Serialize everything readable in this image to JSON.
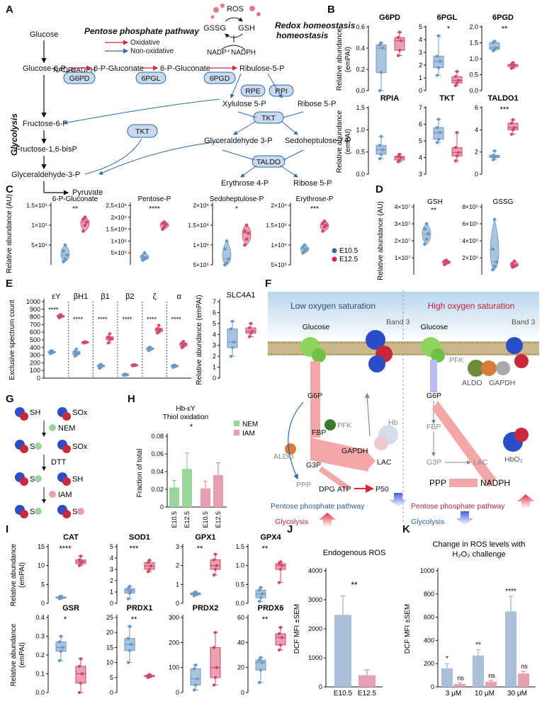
{
  "panel_labels": [
    "A",
    "B",
    "C",
    "D",
    "E",
    "F",
    "G",
    "H",
    "I",
    "J",
    "K"
  ],
  "colors": {
    "blue": "#6d98c2",
    "blue_fill": "#a9c4de",
    "red": "#d14a6a",
    "red_fill": "#e8a1b2",
    "green": "#9bd59b",
    "pink": "#e69fb0",
    "arrow_blue": "#2f6aa8",
    "arrow_red": "#d9263d",
    "node": "#c9daee"
  },
  "panelA": {
    "glycolysis_label": "Glycolysis",
    "ppp_title": "Pentose phosphate pathway",
    "legend_oxidative": "Oxidative",
    "legend_nonoxidative": "Non-oxidative",
    "redox_title": "Redox homeostasis",
    "ros": "ROS",
    "gssg": "GSSG",
    "gsh": "GSH",
    "nadp1": "NADP⁺",
    "nadph1": "NADPH",
    "nadp2": "NADP⁺",
    "nadph2": "NADPH",
    "metabolites": [
      "Glucose",
      "Glucose-6-P",
      "Fructose-6-P",
      "Fructose-1,6-bisP",
      "Glyceraldehyde-3-P",
      "Pyruvate",
      "6-P-Gluconate",
      "6-P-Gluconate",
      "Ribulose-5-P",
      "Xylulose 5-P",
      "Ribose 5-P",
      "Glyceraldehyde 3-P",
      "Sedoheptulose 7-P",
      "Erythrose 4-P",
      "Ribose 5-P"
    ],
    "enzymes": [
      "G6PD",
      "6PGL",
      "6PGD",
      "RPE",
      "RPI",
      "TKT",
      "TKT",
      "TALDO"
    ]
  },
  "panelB": {
    "ylabel": "Relative abundance (emPAI)",
    "plots": [
      {
        "title": "G6PD",
        "sig": "",
        "ylim": [
          0,
          0.6
        ],
        "ticks": [
          "0.0",
          "0.2",
          "0.4",
          "0.6"
        ],
        "e105": [
          0.0,
          0.17,
          0.4,
          0.43,
          0.45
        ],
        "e125": [
          0.33,
          0.38,
          0.47,
          0.5,
          0.55
        ]
      },
      {
        "title": "6PGL",
        "sig": "*",
        "ylim": [
          0,
          5
        ],
        "ticks": [
          "0",
          "1",
          "2",
          "3",
          "4",
          "5"
        ],
        "e105": [
          1.2,
          1.8,
          2.3,
          2.7,
          4.3
        ],
        "e125": [
          0.4,
          0.6,
          0.8,
          1.1,
          1.5
        ]
      },
      {
        "title": "6PGD",
        "sig": "**",
        "ylim": [
          0,
          2
        ],
        "ticks": [
          "0.0",
          "0.5",
          "1.0",
          "1.5",
          "2.0"
        ],
        "e105": [
          1.25,
          1.3,
          1.35,
          1.5,
          1.55
        ],
        "e125": [
          0.7,
          0.75,
          0.8,
          0.82,
          0.88
        ]
      },
      {
        "title": "RPIA",
        "sig": "",
        "ylim": [
          0,
          1.5
        ],
        "ticks": [
          "0.0",
          "0.5",
          "1.0",
          "1.5"
        ],
        "e105": [
          0.35,
          0.45,
          0.55,
          0.65,
          0.85
        ],
        "e125": [
          0.28,
          0.32,
          0.38,
          0.4,
          0.45
        ]
      },
      {
        "title": "TKT",
        "sig": "",
        "ylim": [
          3,
          7
        ],
        "ticks": [
          "3",
          "4",
          "5",
          "6",
          "7"
        ],
        "e105": [
          4.9,
          5.1,
          5.5,
          5.8,
          6.3
        ],
        "e125": [
          3.8,
          4.1,
          4.3,
          4.6,
          5.5
        ]
      },
      {
        "title": "TALDO1",
        "sig": "***",
        "ylim": [
          0,
          6
        ],
        "ticks": [
          "0",
          "2",
          "4",
          "6"
        ],
        "e105": [
          1.3,
          1.5,
          1.6,
          1.7,
          2.1
        ],
        "e125": [
          3.6,
          4.0,
          4.2,
          4.6,
          4.9
        ]
      }
    ]
  },
  "panelC": {
    "ylabel": "Relative abundance (AU)",
    "legend": [
      "E10.5",
      "E12.5"
    ],
    "plots": [
      {
        "title": "6-P-Gluconate",
        "sig": "**",
        "ticks": [
          "5×10⁴",
          "1×10⁵",
          "1.5×10⁵"
        ],
        "tickvals": [
          50000,
          100000,
          150000
        ],
        "ylim": [
          0,
          150000
        ],
        "e105": [
          8000,
          15000,
          25000,
          35000,
          50000
        ],
        "e125": [
          85000,
          100000,
          108000,
          115000,
          120000
        ]
      },
      {
        "title": "Pentose-P",
        "sig": "****",
        "ticks": [
          "5×10⁵",
          "1×10⁶",
          "1.5×10⁶",
          "2×10⁶",
          "2.5×10⁶"
        ],
        "tickvals": [
          500000,
          1000000,
          1500000,
          2000000,
          2500000
        ],
        "ylim": [
          0,
          2500000
        ],
        "e105": [
          200000,
          250000,
          300000,
          350000,
          500000
        ],
        "e125": [
          1500000,
          1600000,
          1700000,
          1750000,
          1800000
        ]
      },
      {
        "title": "Sedoheptulose-P",
        "sig": "*",
        "ticks": [
          "5×10⁵",
          "1×10⁶",
          "1.5×10⁶",
          "2×10⁶"
        ],
        "tickvals": [
          500000,
          1000000,
          1500000,
          2000000
        ],
        "ylim": [
          0,
          2000000
        ],
        "e105": [
          500000,
          550000,
          650000,
          900000,
          1100000
        ],
        "e125": [
          1000000,
          1150000,
          1300000,
          1350000,
          1500000
        ],
        "ymin": 500000
      },
      {
        "title": "Erythrose-P",
        "sig": "***",
        "ticks": [
          "5×10⁵",
          "1×10⁶",
          "1.5×10⁶",
          "2×10⁶"
        ],
        "tickvals": [
          500000,
          1000000,
          1500000,
          2000000
        ],
        "ylim": [
          0,
          2000000
        ],
        "e105": [
          800000,
          850000,
          900000,
          950000,
          1000000
        ],
        "e125": [
          1350000,
          1450000,
          1500000,
          1550000,
          1600000
        ],
        "ymin": 500000
      }
    ]
  },
  "panelD": {
    "ylabel": "Relative abundance (AU)",
    "plots": [
      {
        "title": "GSH",
        "sig": "**",
        "ticks": [
          "1×10⁷",
          "2×10⁷",
          "3×10⁷",
          "4×10⁷"
        ],
        "tickvals": [
          10000000,
          20000000,
          30000000,
          40000000
        ],
        "ylim": [
          0,
          40000000
        ],
        "e105": [
          18000000,
          21000000,
          24000000,
          27000000,
          30000000
        ],
        "e125": [
          6000000,
          7000000,
          7500000,
          8000000,
          8500000
        ]
      },
      {
        "title": "GSSG",
        "sig": "",
        "ticks": [
          "2×10⁵",
          "4×10⁵",
          "6×10⁵",
          "8×10⁵"
        ],
        "tickvals": [
          200000,
          400000,
          600000,
          800000
        ],
        "ylim": [
          0,
          800000
        ],
        "e105": [
          60000,
          100000,
          150000,
          300000,
          650000
        ],
        "e125": [
          90000,
          100000,
          110000,
          130000,
          160000
        ]
      }
    ]
  },
  "panelE": {
    "ylabel": "Exclusive spectrum count",
    "ticks": [
      "0",
      "100",
      "200",
      "300",
      "400",
      "500",
      "600",
      "700",
      "800",
      "900",
      "1000"
    ],
    "ylim": [
      0,
      1000
    ],
    "groups": [
      {
        "name": "εY",
        "sig": "****",
        "e105": [
          320,
          330,
          340,
          350,
          360
        ],
        "e125": [
          790,
          800,
          810,
          820,
          830
        ]
      },
      {
        "name": "βH1",
        "sig": "****",
        "e105": [
          290,
          310,
          330,
          350,
          380
        ],
        "e125": [
          460,
          465,
          470,
          470,
          475
        ]
      },
      {
        "name": "β1",
        "sig": "****",
        "e105": [
          130,
          150,
          160,
          170,
          180
        ],
        "e125": [
          460,
          500,
          520,
          540,
          580
        ]
      },
      {
        "name": "β2",
        "sig": "****",
        "e105": [
          35,
          40,
          45,
          48,
          52
        ],
        "e125": [
          160,
          165,
          170,
          172,
          175
        ]
      },
      {
        "name": "ζ",
        "sig": "****",
        "e105": [
          360,
          375,
          385,
          395,
          405
        ],
        "e125": [
          590,
          610,
          630,
          650,
          690
        ]
      },
      {
        "name": "α",
        "sig": "****",
        "e105": [
          140,
          150,
          160,
          165,
          170
        ],
        "e125": [
          400,
          420,
          440,
          460,
          480
        ]
      }
    ],
    "slc": {
      "title": "SLC4A1",
      "ylabel": "Relative abundance (emPAI)",
      "ticks": [
        "0",
        "1",
        "2",
        "3",
        "4",
        "5",
        "6",
        "7"
      ],
      "ylim": [
        0,
        7
      ],
      "e105": [
        2.0,
        2.8,
        3.3,
        4.5,
        5.2
      ],
      "e125": [
        3.8,
        4.1,
        4.3,
        4.6,
        5.0
      ]
    }
  },
  "panelF": {
    "low_title": "Low oxygen saturation",
    "high_title": "High oxygen saturation",
    "glucose": "Glucose",
    "band3": "Band 3",
    "low_labels": [
      "G6P",
      "FBP",
      "G3P",
      "LAC",
      "DPG",
      "ATP",
      "P50",
      "PPP",
      "PFK",
      "ALDO",
      "GAPDH",
      "Hb"
    ],
    "high_labels": [
      "G6P",
      "FBP",
      "G3P",
      "LAC",
      "PPP",
      "NADPH",
      "PFK",
      "ALDO",
      "GAPDH",
      "HbO₂"
    ],
    "left_ppp": "Pentose phosphate pathway",
    "left_gly": "Glycolysis",
    "right_ppp": "Pentose phosphate pathway",
    "right_gly": "Glycolysis"
  },
  "panelG": {
    "labels": [
      "SH",
      "SOx",
      "NEM",
      "S",
      "SOx",
      "DTT",
      "S",
      "SH",
      "IAM",
      "S",
      "S"
    ]
  },
  "panelH": {
    "title1": "Hb-εY",
    "title2": "Thiol oxidation",
    "ylabel": "Fraction of total",
    "ticks": [
      "0",
      "0.02",
      "0.04",
      "0.06",
      "0.08"
    ],
    "ylim": [
      0,
      0.08
    ],
    "legend": [
      "NEM",
      "IAM"
    ],
    "sig": "*",
    "categories": [
      "E10.5",
      "E12.5",
      "E10.5",
      "E12.5"
    ],
    "values": [
      0.022,
      0.043,
      0.021,
      0.036
    ],
    "errors": [
      0.008,
      0.018,
      0.008,
      0.014
    ]
  },
  "panelI": {
    "ylabel": "Relative abundance (emPAI)",
    "plots": [
      {
        "title": "CAT",
        "sig": "****",
        "ylim": [
          0,
          15
        ],
        "ticks": [
          "0",
          "5",
          "10",
          "15"
        ],
        "e105": [
          1.2,
          1.4,
          1.5,
          1.7,
          1.9
        ],
        "e125": [
          10,
          10.5,
          11,
          11.5,
          12.5
        ]
      },
      {
        "title": "SOD1",
        "sig": "***",
        "ylim": [
          0,
          5
        ],
        "ticks": [
          "0",
          "1",
          "2",
          "3",
          "4",
          "5"
        ],
        "e105": [
          0.4,
          0.9,
          1.1,
          1.3,
          1.5
        ],
        "e125": [
          2.8,
          3.0,
          3.3,
          3.6,
          3.8
        ]
      },
      {
        "title": "GPX1",
        "sig": "**",
        "ylim": [
          0,
          3
        ],
        "ticks": [
          "0",
          "1",
          "2",
          "3"
        ],
        "e105": [
          0.4,
          0.45,
          0.5,
          0.55,
          0.6
        ],
        "e125": [
          1.5,
          1.8,
          2.0,
          2.3,
          2.6
        ]
      },
      {
        "title": "GPX4",
        "sig": "**",
        "ylim": [
          0,
          1.5
        ],
        "ticks": [
          "0.0",
          "0.5",
          "1.0",
          "1.5"
        ],
        "e105": [
          0.05,
          0.15,
          0.25,
          0.35,
          0.42
        ],
        "e125": [
          0.55,
          0.9,
          1.0,
          1.05,
          1.1
        ]
      },
      {
        "title": "GSR",
        "sig": "*",
        "ylim": [
          0,
          0.4
        ],
        "ticks": [
          "0.0",
          "0.1",
          "0.2",
          "0.3",
          "0.4"
        ],
        "e105": [
          0.17,
          0.22,
          0.24,
          0.27,
          0.3
        ],
        "e125": [
          0.0,
          0.05,
          0.1,
          0.14,
          0.18
        ]
      },
      {
        "title": "PRDX1",
        "sig": "**",
        "ylim": [
          0,
          25
        ],
        "ticks": [
          "0",
          "5",
          "10",
          "15",
          "20",
          "25"
        ],
        "e105": [
          10,
          14,
          16,
          18,
          22
        ],
        "e125": [
          5,
          5.3,
          5.5,
          5.7,
          6
        ]
      },
      {
        "title": "PRDX2",
        "sig": "",
        "ylim": [
          0,
          300
        ],
        "ticks": [
          "0",
          "100",
          "200",
          "300"
        ],
        "e105": [
          10,
          30,
          55,
          95,
          110
        ],
        "e125": [
          30,
          60,
          100,
          180,
          240
        ]
      },
      {
        "title": "PRDX6",
        "sig": "**",
        "ylim": [
          0,
          60
        ],
        "ticks": [
          "0",
          "20",
          "40",
          "60"
        ],
        "e105": [
          8,
          18,
          24,
          26,
          28
        ],
        "e125": [
          34,
          38,
          44,
          47,
          52
        ]
      }
    ]
  },
  "chart_data": [
    {
      "type": "bar",
      "title": "Endogenous ROS",
      "ylabel": "DCF MFI ±SEM",
      "categories": [
        "E10.5",
        "E12.5"
      ],
      "values": [
        2480,
        400
      ],
      "errors": [
        650,
        180
      ],
      "ylim": [
        0,
        4000
      ],
      "ticks": [
        "0",
        "1000",
        "2000",
        "3000",
        "4000"
      ],
      "sig": "**"
    },
    {
      "type": "bar",
      "title": "Change in ROS levels with H₂O₂ challenge",
      "ylabel": "DCF MFI ±SEM",
      "categories": [
        "3 μM",
        "10 μM",
        "30 μM"
      ],
      "series": [
        {
          "values": [
            160,
            270,
            650
          ],
          "errors": [
            40,
            50,
            130
          ]
        },
        {
          "values": [
            25,
            45,
            115
          ],
          "errors": [
            10,
            10,
            20
          ]
        }
      ],
      "ylim": [
        0,
        1000
      ],
      "ticks": [
        "0",
        "200",
        "400",
        "600",
        "800",
        "1000"
      ],
      "sig": [
        "*",
        "**",
        "****"
      ],
      "sig2": [
        "ns",
        "ns",
        "ns"
      ]
    }
  ]
}
